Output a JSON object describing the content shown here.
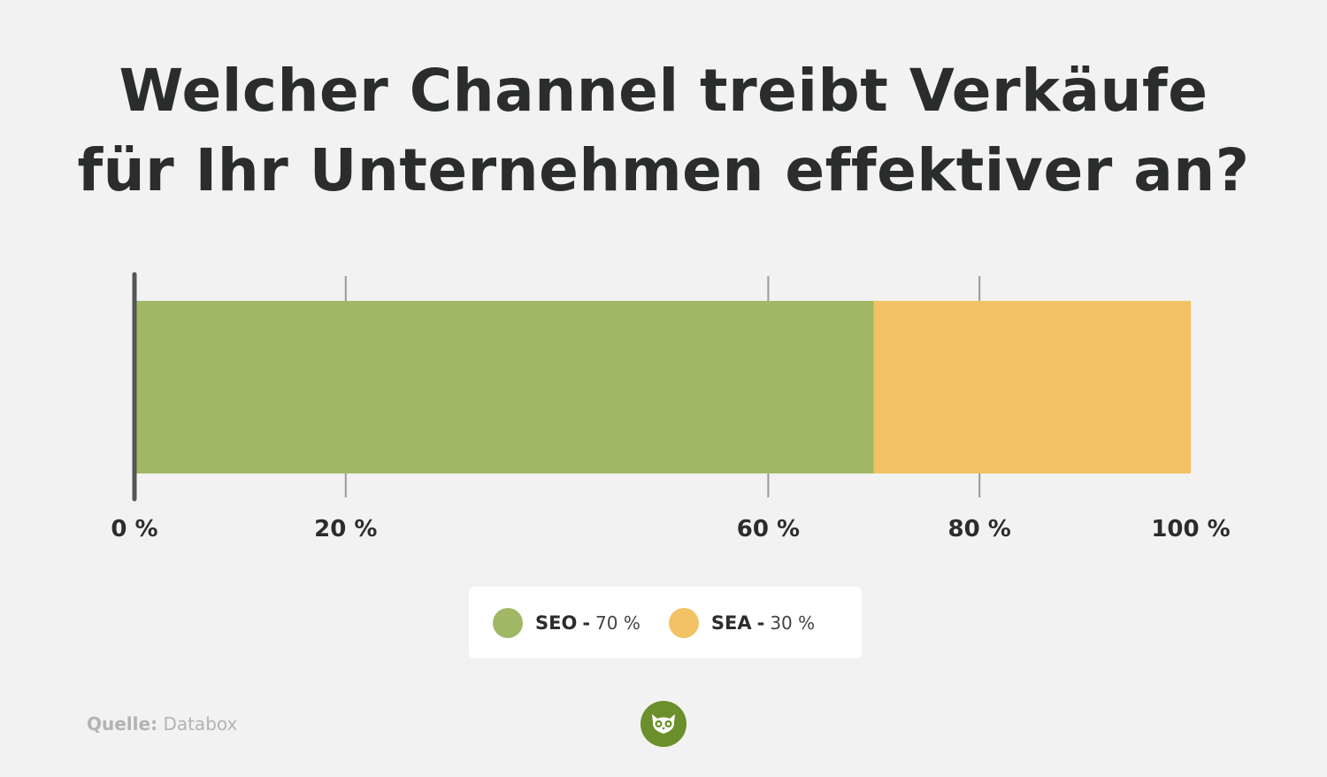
{
  "title": {
    "line1": "Welcher Channel treibt Verkäufe",
    "line2": "für Ihr Unternehmen effektiver an?"
  },
  "chart_data": {
    "type": "bar",
    "orientation": "horizontal-stacked",
    "categories": [
      ""
    ],
    "series": [
      {
        "name": "SEO",
        "values": [
          70
        ],
        "color": "#a0b865"
      },
      {
        "name": "SEA",
        "values": [
          30
        ],
        "color": "#f2c265"
      }
    ],
    "xlim": [
      0,
      100
    ],
    "x_ticks": [
      "0 %",
      "20 %",
      "60 %",
      "80 %",
      "100 %"
    ],
    "grid": true,
    "legend_position": "bottom-center"
  },
  "legend": {
    "items": [
      {
        "name": "SEO",
        "sep": "-",
        "value": "70 %",
        "color": "#a0b865"
      },
      {
        "name": "SEA",
        "sep": "-",
        "value": "30 %",
        "color": "#f2c265"
      }
    ]
  },
  "source": {
    "label": "Quelle:",
    "value": "Databox"
  },
  "logo": {
    "icon": "owl-icon",
    "color": "#6b8f2a"
  }
}
